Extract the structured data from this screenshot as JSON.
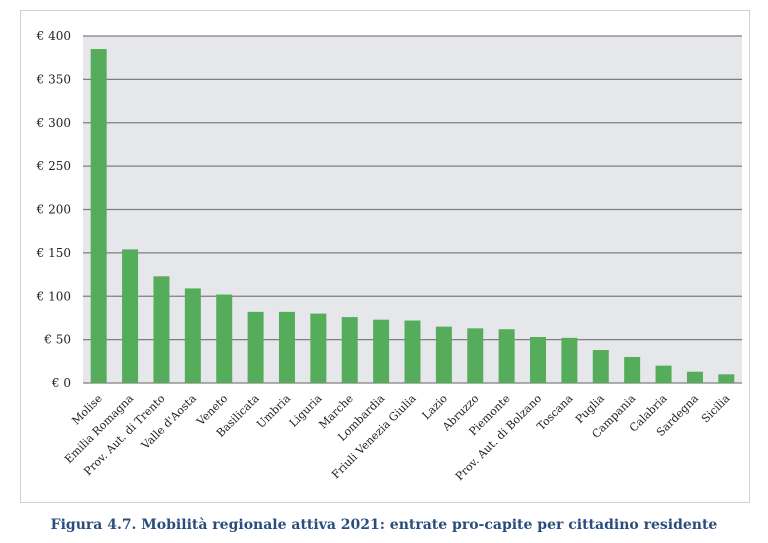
{
  "chart_data": {
    "type": "bar",
    "title": "",
    "xlabel": "",
    "ylabel": "",
    "ylim": [
      0,
      400
    ],
    "yticks": [
      0,
      50,
      100,
      150,
      200,
      250,
      300,
      350,
      400
    ],
    "ytick_labels": [
      "€ 0",
      "€ 50",
      "€ 100",
      "€ 150",
      "€ 200",
      "€ 250",
      "€ 300",
      "€ 350",
      "€ 400"
    ],
    "grid": true,
    "categories": [
      "Molise",
      "Emilia Romagna",
      "Prov. Aut. di Trento",
      "Valle d'Aosta",
      "Veneto",
      "Basilicata",
      "Umbria",
      "Liguria",
      "Marche",
      "Lombardia",
      "Friuli Venezia Giulia",
      "Lazio",
      "Abruzzo",
      "Piemonte",
      "Prov. Aut. di Bolzano",
      "Toscana",
      "Puglia",
      "Campania",
      "Calabria",
      "Sardegna",
      "Sicilia"
    ],
    "values": [
      385,
      154,
      123,
      109,
      102,
      82,
      82,
      80,
      76,
      73,
      72,
      65,
      63,
      62,
      53,
      52,
      38,
      30,
      20,
      13,
      10
    ],
    "colors": {
      "bar": "#55ad5c",
      "plot_bg": "#e6e7eb",
      "grid": "#7f7f7f"
    }
  },
  "caption": "Figura 4.7. Mobilità regionale attiva 2021: entrate pro-capite per cittadino residente"
}
